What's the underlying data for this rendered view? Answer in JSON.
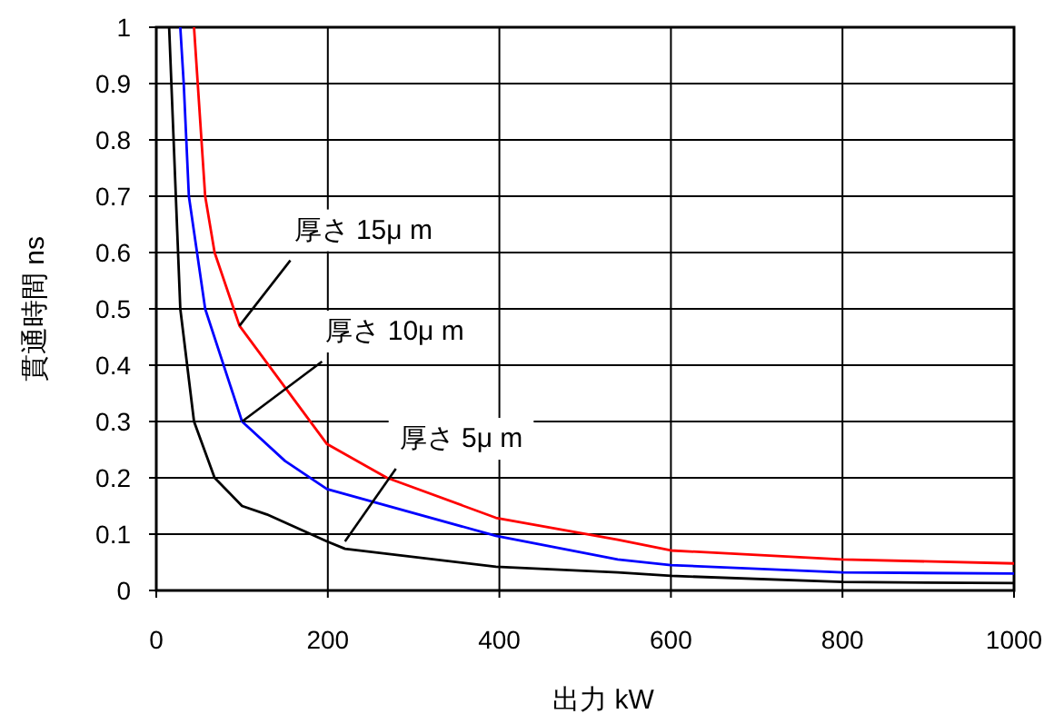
{
  "chart_data": {
    "type": "line",
    "xlabel": "出力  kW",
    "ylabel": "貫通時間  ns",
    "xlim": [
      0,
      1000
    ],
    "ylim": [
      0,
      1
    ],
    "xticks": [
      0,
      200,
      400,
      600,
      800,
      1000
    ],
    "yticks": [
      0,
      0.1,
      0.2,
      0.3,
      0.4,
      0.5,
      0.6,
      0.7,
      0.8,
      0.9,
      1
    ],
    "grid": true,
    "marker": "none",
    "line_style": "solid",
    "series": [
      {
        "color": "#ff0000",
        "x": [
          44,
          57,
          68,
          97,
          199,
          269,
          396,
          538,
          600,
          800,
          1000
        ],
        "values": [
          1,
          0.7,
          0.6,
          0.47,
          0.26,
          0.2,
          0.129,
          0.09,
          0.071,
          0.055,
          0.048
        ]
      },
      {
        "color": "#0000ff",
        "x": [
          28,
          32,
          38,
          57,
          100,
          150,
          199,
          396,
          538,
          600,
          800,
          1000
        ],
        "values": [
          1,
          0.9,
          0.7,
          0.5,
          0.3,
          0.23,
          0.18,
          0.097,
          0.055,
          0.045,
          0.032,
          0.03
        ]
      },
      {
        "color": "#000000",
        "x": [
          15,
          28,
          44,
          68,
          100,
          129,
          199,
          220,
          396,
          538,
          600,
          800,
          1000
        ],
        "values": [
          1,
          0.5,
          0.3,
          0.2,
          0.15,
          0.135,
          0.087,
          0.074,
          0.042,
          0.032,
          0.026,
          0.015,
          0.013
        ]
      }
    ],
    "annotations": [
      {
        "text": "厚さ 15μ m",
        "x": 97,
        "y": 0.47
      },
      {
        "text": "厚さ 10μ m",
        "x": 100,
        "y": 0.3
      },
      {
        "text": "厚さ 5μ m",
        "x": 220,
        "y": 0.087
      }
    ]
  }
}
